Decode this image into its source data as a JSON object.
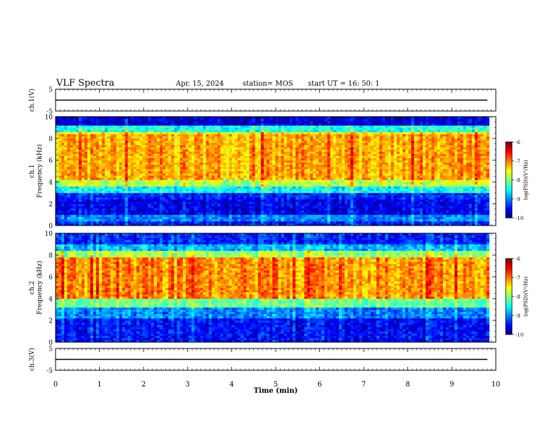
{
  "header": {
    "title": "VLF Spectra",
    "date": "Apr. 15, 2024",
    "station_label": "station= MOS",
    "start_label": "start  UT  =   16: 50: 1"
  },
  "chart_data": [
    {
      "type": "line",
      "panel": "ch1-waveform",
      "ylabel": "ch.1(V)",
      "ylim": [
        -5,
        5
      ],
      "yticks": [
        "5",
        "-5"
      ],
      "series": [
        {
          "x": [
            0,
            10
          ],
          "y": [
            0,
            0
          ]
        }
      ]
    },
    {
      "type": "heatmap",
      "panel": "ch1-spectrogram",
      "ylabel": "ch.1\nFrequency (kHz)",
      "ylabel_lines": [
        "ch.1",
        "Frequency (kHz)"
      ],
      "xlim": [
        0,
        9.85
      ],
      "ylim": [
        0,
        10
      ],
      "yticks": [
        "0",
        "2",
        "4",
        "6",
        "8",
        "10"
      ],
      "bands": [
        {
          "from": 0,
          "to": 0.4,
          "level": -9.4
        },
        {
          "from": 0.4,
          "to": 1.0,
          "level": -9.0
        },
        {
          "from": 1.0,
          "to": 2.5,
          "level": -9.6
        },
        {
          "from": 2.5,
          "to": 3.0,
          "level": -9.4
        },
        {
          "from": 3.0,
          "to": 3.6,
          "level": -8.5
        },
        {
          "from": 3.6,
          "to": 4.3,
          "level": -7.8
        },
        {
          "from": 4.3,
          "to": 8.3,
          "level": -7.2
        },
        {
          "from": 8.3,
          "to": 8.7,
          "level": -7.5
        },
        {
          "from": 8.7,
          "to": 9.2,
          "level": -8.4
        },
        {
          "from": 9.2,
          "to": 10,
          "level": -9.7
        }
      ],
      "colorbar": {
        "label": "log(PSD)(V²/Hz)",
        "range": [
          -10,
          -6
        ],
        "ticks": [
          "-6",
          "-7",
          "-8",
          "-9",
          "-10"
        ]
      }
    },
    {
      "type": "heatmap",
      "panel": "ch2-spectrogram",
      "ylabel": "ch.2\nFrequency (kHz)",
      "ylabel_lines": [
        "ch.2",
        "Frequency (kHz)"
      ],
      "xlim": [
        0,
        9.85
      ],
      "ylim": [
        0,
        10
      ],
      "yticks": [
        "0",
        "2",
        "4",
        "6",
        "8",
        "10"
      ],
      "bands": [
        {
          "from": 0,
          "to": 2.2,
          "level": -9.5
        },
        {
          "from": 2.2,
          "to": 3.2,
          "level": -9.0
        },
        {
          "from": 3.2,
          "to": 4.0,
          "level": -8.1
        },
        {
          "from": 4.0,
          "to": 7.7,
          "level": -7.1
        },
        {
          "from": 7.7,
          "to": 8.3,
          "level": -7.9
        },
        {
          "from": 8.3,
          "to": 9.0,
          "level": -8.8
        },
        {
          "from": 9.0,
          "to": 10,
          "level": -9.4
        }
      ],
      "colorbar": {
        "label": "log(PSD)(V²/Hz)",
        "range": [
          -10,
          -6
        ],
        "ticks": [
          "-6",
          "-7",
          "-8",
          "-9",
          "-10"
        ]
      }
    },
    {
      "type": "line",
      "panel": "ch3-waveform",
      "ylabel": "ch.3(V)",
      "ylim": [
        -5,
        5
      ],
      "yticks": [
        "5",
        "-5"
      ],
      "series": [
        {
          "x": [
            0,
            10
          ],
          "y": [
            0,
            0
          ]
        }
      ]
    }
  ],
  "time_axis": {
    "label": "Time  (min)",
    "ticks": [
      "0",
      "1",
      "2",
      "3",
      "4",
      "5",
      "6",
      "7",
      "8",
      "9",
      "10"
    ]
  }
}
